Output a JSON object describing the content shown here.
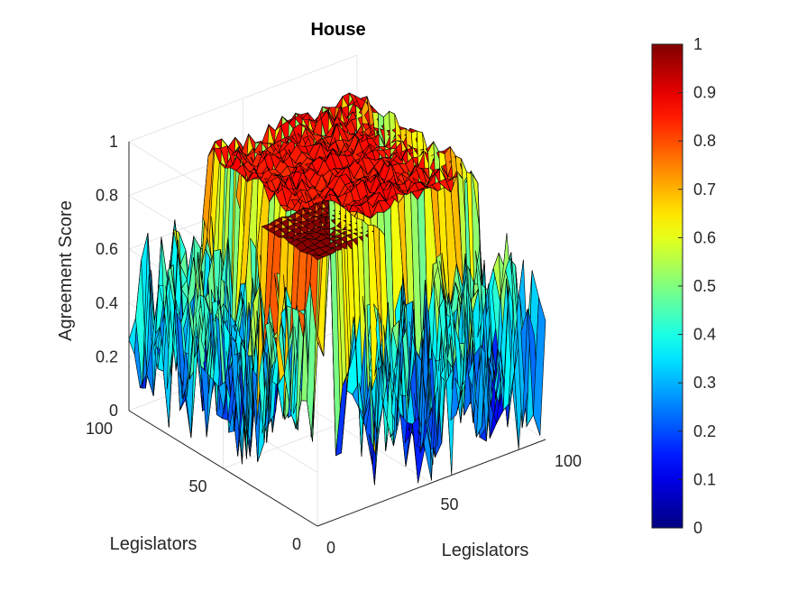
{
  "chart_data": {
    "type": "surface3d",
    "title": "House",
    "xlabel": "Legislators",
    "ylabel": "Legislators",
    "zlabel": "Agreement Score",
    "x_ticks": [
      "0",
      "50",
      "100"
    ],
    "y_ticks": [
      "0",
      "50",
      "100"
    ],
    "z_ticks": [
      "0",
      "0.2",
      "0.4",
      "0.6",
      "0.8",
      "1"
    ],
    "xlim": [
      0,
      100
    ],
    "ylim": [
      0,
      100
    ],
    "zlim": [
      0,
      1
    ],
    "grid": true,
    "colormap": "jet",
    "colorbar": {
      "location": "right",
      "ticks": [
        "0",
        "0.1",
        "0.2",
        "0.3",
        "0.4",
        "0.5",
        "0.6",
        "0.7",
        "0.8",
        "0.9",
        "1"
      ],
      "range": [
        0,
        1
      ]
    },
    "block_structure": [
      {
        "from": 0,
        "to": 30,
        "score": 1.0
      },
      {
        "from": 30,
        "to": 100,
        "score": 0.9
      }
    ],
    "off_block_score_range": [
      0.0,
      0.7
    ],
    "colors": {
      "high": "#800000",
      "low": "#00008f",
      "mid": "#80ff80",
      "edge": "#000000"
    }
  }
}
